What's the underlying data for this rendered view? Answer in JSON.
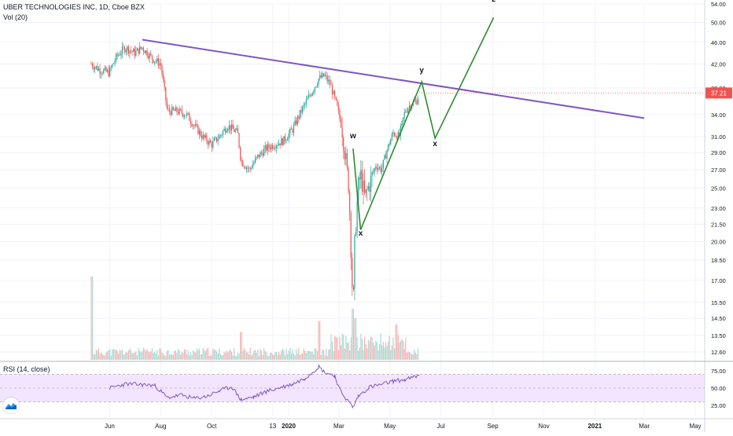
{
  "header": {
    "symbol_line": "UBER TECHNOLOGIES INC, 1D, Cboe BZX",
    "volume_label": "Vol (20)",
    "rsi_label": "RSI (14, close)"
  },
  "current_price": {
    "value": 37.21,
    "label": "37.21"
  },
  "colors": {
    "up": "#26a69a",
    "down": "#ef5350",
    "trendline": "#7e57c2",
    "wave": "#2e8b2e",
    "rsi_line": "#7e57c2",
    "rsi_band": "#f3e5ff",
    "price_tag": "#ef5350",
    "grid": "#f0f3fa"
  },
  "chart_data": [
    {
      "type": "line",
      "title": "UBER TECHNOLOGIES INC, 1D, Cboe BZX",
      "scale": "log",
      "ylim": [
        12.0,
        55.0
      ],
      "y_ticks": [
        12.6,
        13.5,
        14.5,
        15.5,
        17.0,
        18.5,
        20.0,
        21.5,
        23.0,
        25.0,
        27.0,
        29.0,
        31.0,
        34.0,
        38.0,
        42.0,
        46.0,
        50.0,
        54.0
      ],
      "x_tick_labels": [
        "Jun",
        "Aug",
        "Oct",
        "13",
        "2020",
        "Mar",
        "May",
        "Jul",
        "Sep",
        "Nov",
        "2021",
        "Mar",
        "May"
      ],
      "series": [
        {
          "name": "UBER TECHNOLOGIES INC",
          "points": [
            [
              "2019-05-10",
              42.0
            ],
            [
              "2019-05-20",
              41.0
            ],
            [
              "2019-05-31",
              40.5
            ],
            [
              "2019-06-10",
              43.5
            ],
            [
              "2019-06-20",
              45.0
            ],
            [
              "2019-07-01",
              44.0
            ],
            [
              "2019-07-10",
              45.0
            ],
            [
              "2019-07-22",
              43.0
            ],
            [
              "2019-08-01",
              42.0
            ],
            [
              "2019-08-09",
              34.5
            ],
            [
              "2019-08-20",
              34.5
            ],
            [
              "2019-09-01",
              34.0
            ],
            [
              "2019-09-10",
              32.5
            ],
            [
              "2019-09-20",
              31.0
            ],
            [
              "2019-10-01",
              30.0
            ],
            [
              "2019-10-10",
              31.0
            ],
            [
              "2019-10-20",
              32.5
            ],
            [
              "2019-11-01",
              31.5
            ],
            [
              "2019-11-05",
              28.0
            ],
            [
              "2019-11-15",
              27.0
            ],
            [
              "2019-11-25",
              28.5
            ],
            [
              "2019-12-05",
              29.5
            ],
            [
              "2019-12-15",
              30.0
            ],
            [
              "2019-12-26",
              30.5
            ],
            [
              "2020-01-06",
              32.0
            ],
            [
              "2020-01-16",
              34.5
            ],
            [
              "2020-01-27",
              37.0
            ],
            [
              "2020-02-06",
              39.5
            ],
            [
              "2020-02-13",
              40.0
            ],
            [
              "2020-02-20",
              38.5
            ],
            [
              "2020-02-27",
              35.5
            ],
            [
              "2020-03-05",
              32.0
            ],
            [
              "2020-03-10",
              27.5
            ],
            [
              "2020-03-13",
              25.0
            ],
            [
              "2020-03-16",
              18.5
            ],
            [
              "2020-03-18",
              14.9
            ],
            [
              "2020-03-20",
              20.0
            ],
            [
              "2020-03-24",
              25.0
            ],
            [
              "2020-03-27",
              26.5
            ],
            [
              "2020-04-01",
              24.0
            ],
            [
              "2020-04-07",
              25.5
            ],
            [
              "2020-04-14",
              27.5
            ],
            [
              "2020-04-21",
              27.0
            ],
            [
              "2020-04-28",
              29.5
            ],
            [
              "2020-05-05",
              31.5
            ],
            [
              "2020-05-12",
              31.0
            ],
            [
              "2020-05-19",
              34.5
            ],
            [
              "2020-05-26",
              35.5
            ],
            [
              "2020-06-02",
              36.0
            ],
            [
              "2020-06-05",
              37.21
            ]
          ]
        },
        {
          "name": "trendline",
          "points": [
            [
              "2019-07-10",
              46.5
            ],
            [
              "2021-03-01",
              33.5
            ]
          ]
        },
        {
          "name": "wave",
          "points": [
            [
              "2020-03-18",
              29.5
            ],
            [
              "2020-03-27",
              21.0
            ],
            [
              "2020-06-08",
              39.0
            ],
            [
              "2020-06-24",
              30.8
            ],
            [
              "2020-09-02",
              51.0
            ]
          ]
        }
      ],
      "annotations": [
        {
          "label": "w",
          "x": "2020-03-18",
          "y": 30.8
        },
        {
          "label": "x",
          "x": "2020-03-27",
          "y": 20.5
        },
        {
          "label": "y",
          "x": "2020-06-08",
          "y": 40.5
        },
        {
          "label": "x",
          "x": "2020-06-24",
          "y": 29.8
        },
        {
          "label": "z",
          "x": "2020-09-02",
          "y": 54.5
        }
      ]
    },
    {
      "type": "bar",
      "title": "Vol (20)",
      "description_values": "relative daily volume, 0-1 scale",
      "x_range": [
        "2019-05-10",
        "2020-06-05"
      ],
      "spikes": [
        [
          "2019-05-10",
          0.9
        ],
        [
          "2019-11-05",
          0.3
        ],
        [
          "2020-02-07",
          0.42
        ],
        [
          "2020-03-18",
          0.55
        ],
        [
          "2020-03-20",
          0.45
        ],
        [
          "2020-05-08",
          0.38
        ]
      ],
      "baseline": 0.1
    },
    {
      "type": "line",
      "title": "RSI (14, close)",
      "ylim": [
        15,
        85
      ],
      "y_ticks": [
        25.0,
        50.0,
        75.0
      ],
      "band": [
        30,
        70
      ],
      "points": [
        [
          "2019-06-01",
          50
        ],
        [
          "2019-06-20",
          56
        ],
        [
          "2019-07-10",
          55
        ],
        [
          "2019-07-25",
          54
        ],
        [
          "2019-08-09",
          36
        ],
        [
          "2019-08-25",
          40
        ],
        [
          "2019-09-10",
          35
        ],
        [
          "2019-09-25",
          38
        ],
        [
          "2019-10-10",
          46
        ],
        [
          "2019-10-25",
          52
        ],
        [
          "2019-11-05",
          33
        ],
        [
          "2019-11-20",
          37
        ],
        [
          "2019-12-05",
          45
        ],
        [
          "2019-12-20",
          50
        ],
        [
          "2020-01-06",
          56
        ],
        [
          "2020-01-20",
          64
        ],
        [
          "2020-02-06",
          81
        ],
        [
          "2020-02-13",
          73
        ],
        [
          "2020-02-25",
          68
        ],
        [
          "2020-03-02",
          48
        ],
        [
          "2020-03-10",
          34
        ],
        [
          "2020-03-18",
          22
        ],
        [
          "2020-03-24",
          38
        ],
        [
          "2020-04-07",
          52
        ],
        [
          "2020-04-21",
          55
        ],
        [
          "2020-05-05",
          60
        ],
        [
          "2020-05-19",
          62
        ],
        [
          "2020-06-05",
          68
        ]
      ]
    }
  ]
}
